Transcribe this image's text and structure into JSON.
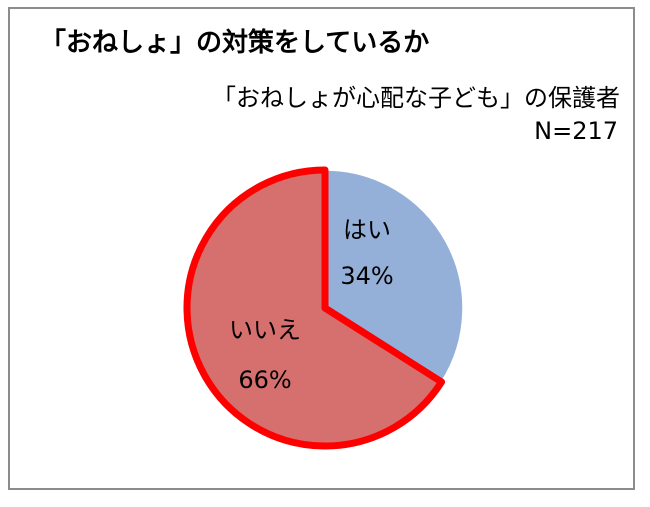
{
  "title": "「おねしょ」の対策をしているか",
  "subtitle": "「おねしょが心配な子ども」の保護者",
  "sample": "N=217",
  "chart_data": {
    "type": "pie",
    "title": "「おねしょ」の対策をしているか",
    "subtitle": "「おねしょが心配な子ども」の保護者",
    "sample_size": "N=217",
    "start": "12 o'clock, clockwise",
    "categories": [
      "はい",
      "いいえ"
    ],
    "values": [
      34,
      66
    ],
    "value_labels": [
      "34%",
      "66%"
    ],
    "colors": [
      "#94b0d8",
      "#d6706e"
    ],
    "highlight_border": "#ff0000",
    "highlighted": "いいえ"
  }
}
